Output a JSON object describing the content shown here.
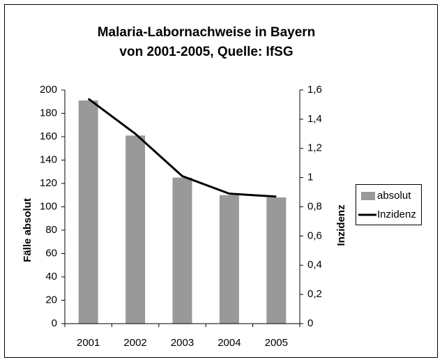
{
  "chart_data": {
    "type": "bar-line",
    "title": "Malaria-Labornachweise in Bayern",
    "subtitle": "von 2001-2005, Quelle: IfSG",
    "ylabel": "Fälle absolut",
    "y2label": "Inzidenz",
    "categories": [
      "2001",
      "2002",
      "2003",
      "2004",
      "2005"
    ],
    "series": [
      {
        "name": "absolut",
        "type": "bar",
        "color": "#999999",
        "values": [
          191,
          161,
          125,
          110,
          108
        ]
      },
      {
        "name": "Inzidenz",
        "type": "line",
        "axis": "y2",
        "color": "#000000",
        "values": [
          1.54,
          1.3,
          1.01,
          0.89,
          0.87
        ]
      }
    ],
    "ylim": [
      0,
      200
    ],
    "yticks": [
      0,
      20,
      40,
      60,
      80,
      100,
      120,
      140,
      160,
      180,
      200
    ],
    "y2lim": [
      0,
      1.6
    ],
    "y2ticks": [
      0,
      {
        "value": 0.2,
        "label": "0,2"
      },
      {
        "value": 0.4,
        "label": "0,4"
      },
      {
        "value": 0.6,
        "label": "0,6"
      },
      {
        "value": 0.8,
        "label": "0,8"
      },
      1,
      {
        "value": 1.2,
        "label": "1,2"
      },
      {
        "value": 1.4,
        "label": "1,4"
      },
      {
        "value": 1.6,
        "label": "1,6"
      }
    ],
    "legend": "right"
  }
}
